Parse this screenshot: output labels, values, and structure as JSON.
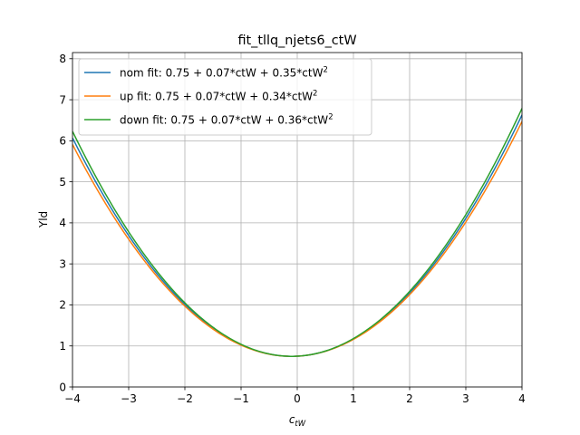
{
  "chart_data": {
    "type": "line",
    "title": "fit_tllq_njets6_ctW",
    "xlabel": "c",
    "xlabel_sub": "tW",
    "ylabel": "Yld",
    "xlim": [
      -4,
      4
    ],
    "ylim": [
      0,
      8.15
    ],
    "xticks": [
      -4,
      -3,
      -2,
      -1,
      0,
      1,
      2,
      3,
      4
    ],
    "yticks": [
      0,
      1,
      2,
      3,
      4,
      5,
      6,
      7,
      8
    ],
    "grid": true,
    "legend_position": "upper-left",
    "series": [
      {
        "name": "nom fit: 0.75 + 0.07*ctW + 0.35*ctW",
        "name_sup": "2",
        "coefficients": [
          0.75,
          0.07,
          0.35
        ],
        "color": "#1f77b4"
      },
      {
        "name": "up fit: 0.75 + 0.07*ctW + 0.34*ctW",
        "name_sup": "2",
        "coefficients": [
          0.75,
          0.07,
          0.34
        ],
        "color": "#ff7f0e"
      },
      {
        "name": "down fit: 0.75 + 0.07*ctW + 0.36*ctW",
        "name_sup": "2",
        "coefficients": [
          0.75,
          0.07,
          0.36
        ],
        "color": "#2ca02c"
      }
    ]
  }
}
